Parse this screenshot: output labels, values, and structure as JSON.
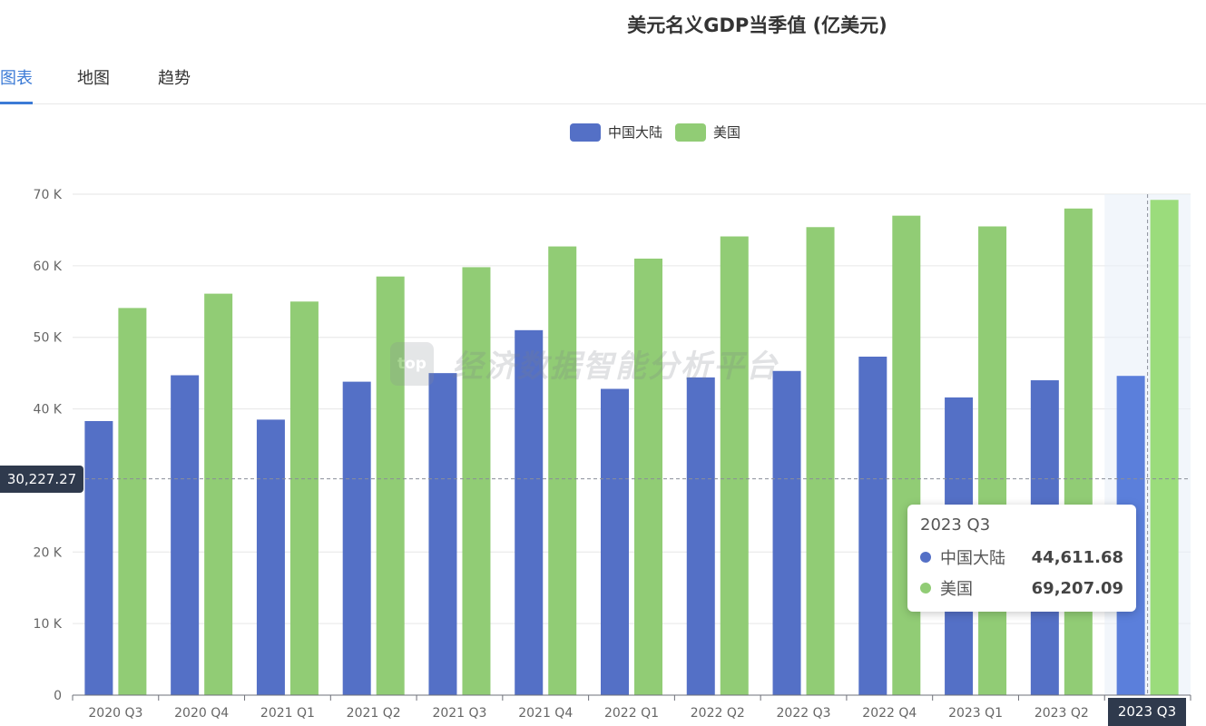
{
  "title": "美元名义GDP当季值 (亿美元)",
  "tabs": [
    {
      "label": "图表",
      "active": true
    },
    {
      "label": "地图",
      "active": false
    },
    {
      "label": "趋势",
      "active": false
    }
  ],
  "watermark": {
    "logo": "top",
    "text": "经济数据智能分析平台"
  },
  "chart_data": {
    "type": "bar",
    "categories": [
      "2020 Q3",
      "2020 Q4",
      "2021 Q1",
      "2021 Q2",
      "2021 Q3",
      "2021 Q4",
      "2022 Q1",
      "2022 Q2",
      "2022 Q3",
      "2022 Q4",
      "2023 Q1",
      "2023 Q2",
      "2023 Q3"
    ],
    "series": [
      {
        "name": "中国大陆",
        "color": "#5470c6",
        "values": [
          38300,
          44700,
          38500,
          43800,
          45000,
          51000,
          42800,
          44400,
          45300,
          47300,
          41600,
          44000,
          44611.68
        ]
      },
      {
        "name": "美国",
        "color": "#91cc75",
        "values": [
          54100,
          56100,
          55000,
          58500,
          59800,
          62700,
          61000,
          64100,
          65400,
          67000,
          65500,
          68000,
          69207.09
        ]
      }
    ],
    "ylim": [
      0,
      70000
    ],
    "yticks": [
      {
        "value": 0,
        "label": "0"
      },
      {
        "value": 10000,
        "label": "10 K"
      },
      {
        "value": 20000,
        "label": "20 K"
      },
      {
        "value": 40000,
        "label": "40 K"
      },
      {
        "value": 50000,
        "label": "50 K"
      },
      {
        "value": 60000,
        "label": "60 K"
      },
      {
        "value": 70000,
        "label": "70 K"
      }
    ],
    "grid": true,
    "legend_position": "top-center",
    "highlight_category": "2023 Q3",
    "pointer_value": 30227.27,
    "pointer_label": "30,227.27"
  },
  "tooltip": {
    "title": "2023 Q3",
    "rows": [
      {
        "name": "中国大陆",
        "value": "44,611.68",
        "color": "#5470c6"
      },
      {
        "name": "美国",
        "value": "69,207.09",
        "color": "#91cc75"
      }
    ]
  }
}
